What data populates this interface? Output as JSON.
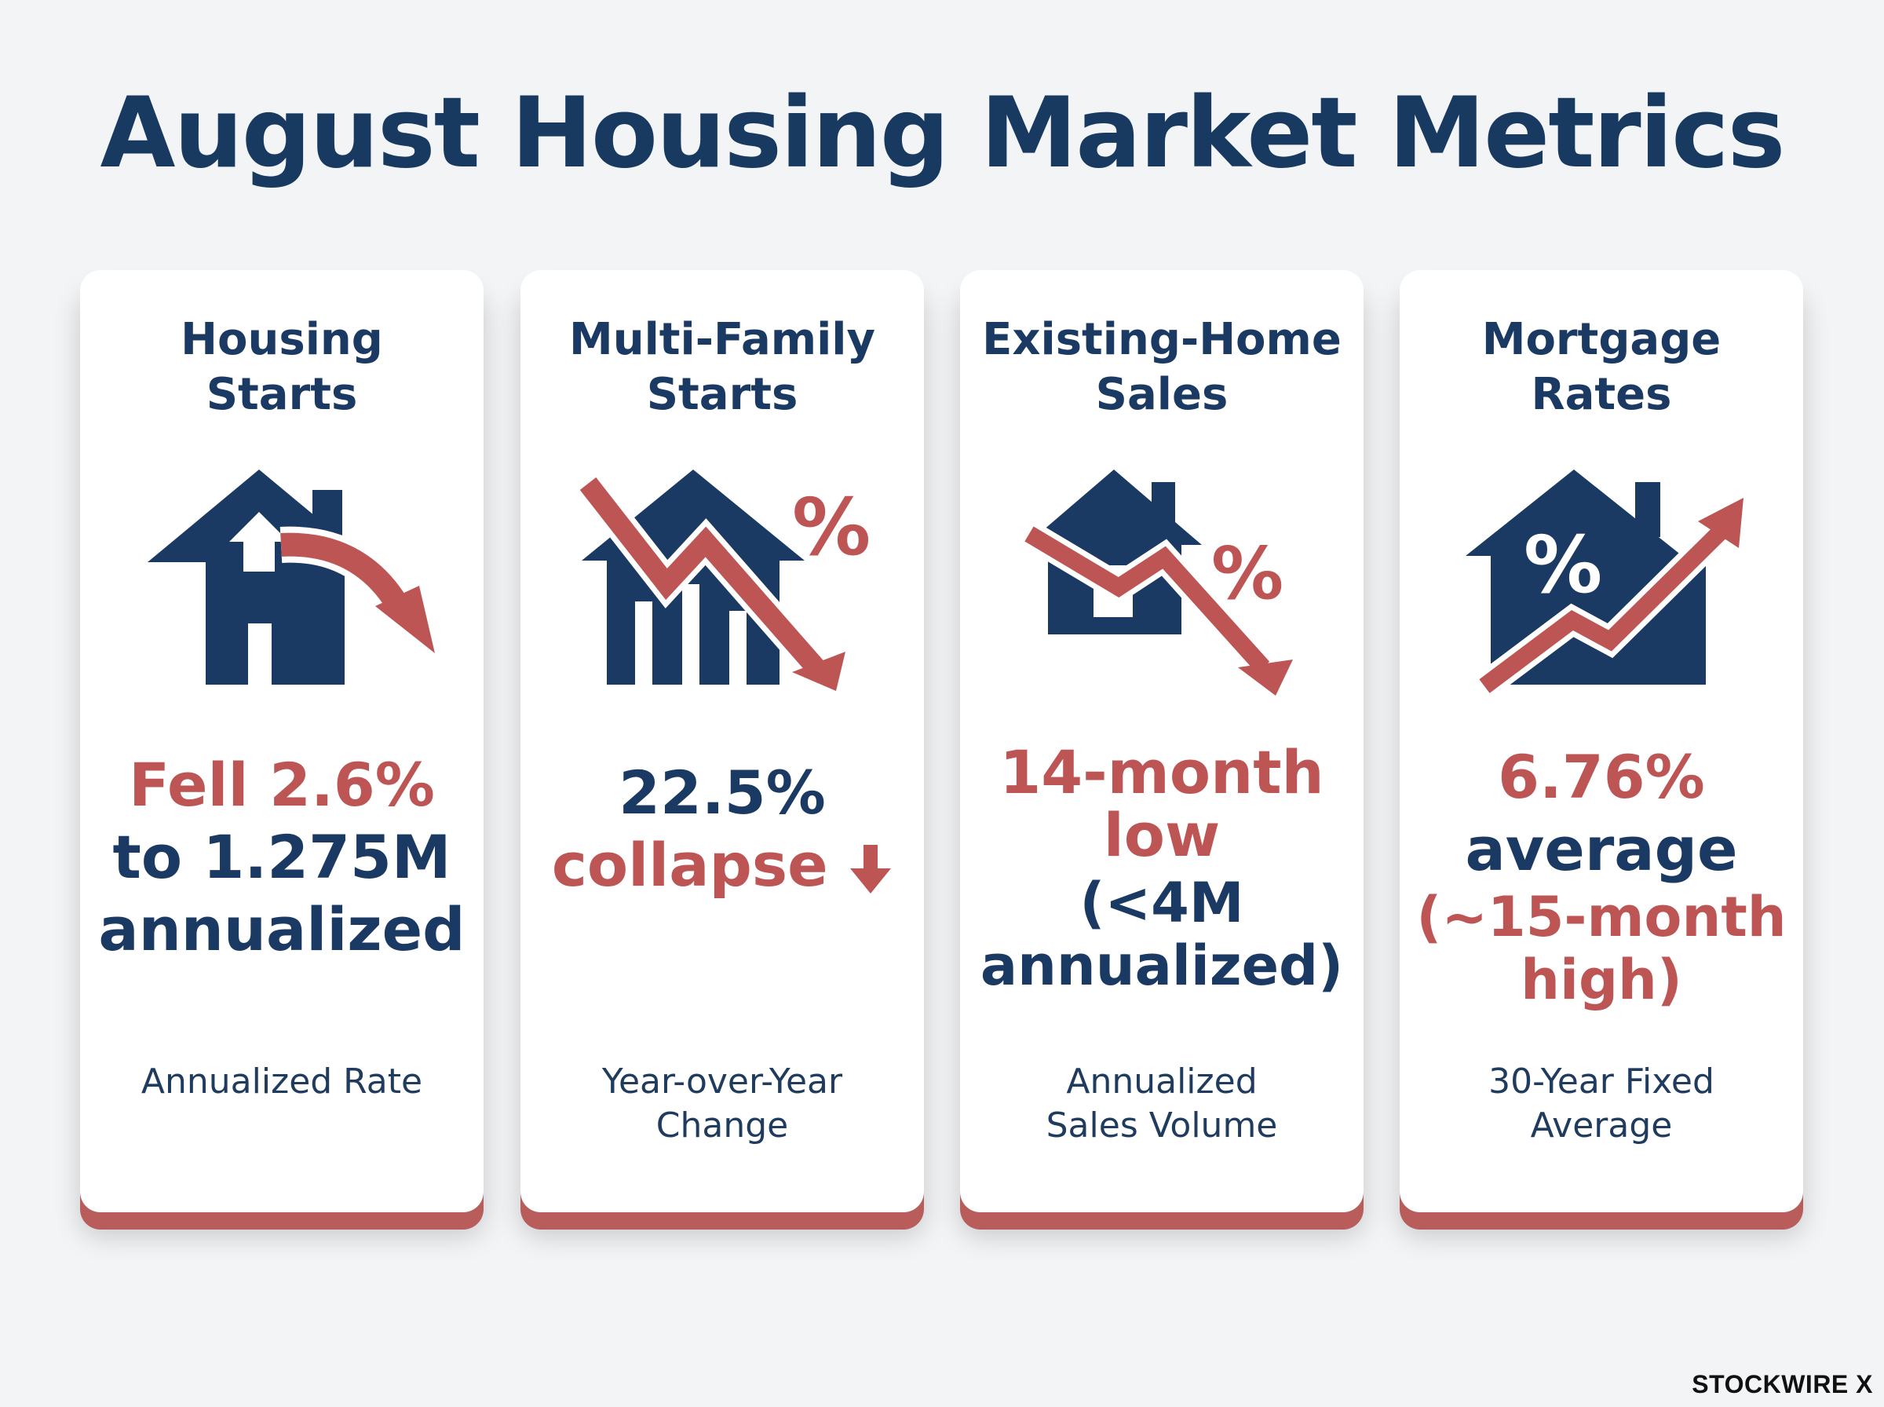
{
  "title": "August Housing Market Metrics",
  "colors": {
    "navy": "#1b3a63",
    "red": "#bd5555",
    "background": "#f3f4f6"
  },
  "cards": [
    {
      "title": [
        "Housing",
        "Starts"
      ],
      "icon": "house-with-falling-arrow-icon",
      "value": [
        "Fell 2.6%",
        "to 1.275M",
        "annualized"
      ],
      "caption": [
        "Annualized Rate"
      ]
    },
    {
      "title": [
        "Multi-Family",
        "Starts"
      ],
      "icon": "house-bars-percent-down-icon",
      "value": [
        "22.5%",
        "collapse"
      ],
      "caption": [
        "Year-over-Year",
        "Change"
      ]
    },
    {
      "title": [
        "Existing-Home",
        "Sales"
      ],
      "icon": "house-percent-down-icon",
      "value": [
        "14-month",
        "low",
        "(<4M",
        "annualized)"
      ],
      "caption": [
        "Annualized",
        "Sales Volume"
      ]
    },
    {
      "title": [
        "Mortgage",
        "Rates"
      ],
      "icon": "house-percent-up-icon",
      "value": [
        "6.76%",
        "average",
        "(~15-month",
        "high)"
      ],
      "caption": [
        "30-Year Fixed",
        "Average"
      ]
    }
  ],
  "brand": "STOCKWIRE X"
}
